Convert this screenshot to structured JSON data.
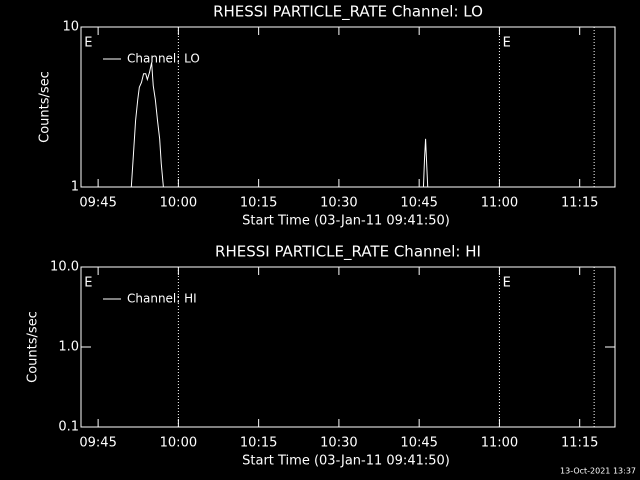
{
  "chart_data": [
    {
      "type": "line",
      "title": "RHESSI PARTICLE_RATE Channel: LO",
      "xlabel": "Start Time (03-Jan-11 09:41:50)",
      "ylabel": "Counts/sec",
      "xlim": [
        581.8,
        681.6
      ],
      "xticks": [
        {
          "value": 585,
          "label": "09:45"
        },
        {
          "value": 600,
          "label": "10:00"
        },
        {
          "value": 615,
          "label": "10:15"
        },
        {
          "value": 630,
          "label": "10:30"
        },
        {
          "value": 645,
          "label": "10:45"
        },
        {
          "value": 660,
          "label": "11:00"
        },
        {
          "value": 675,
          "label": "11:15"
        }
      ],
      "ylim": [
        1,
        10
      ],
      "yticks": [
        1,
        10
      ],
      "log_y": true,
      "markers": [
        600,
        660,
        677.7
      ],
      "annotations": [
        {
          "text": "E",
          "x": 582.4
        },
        {
          "text": "E",
          "x": 660.6
        }
      ],
      "series": [
        {
          "name": "Channel: LO",
          "color": "#ffffff",
          "x": [
            591.2,
            591.6,
            592.0,
            592.4,
            592.7,
            593.1,
            593.5,
            593.9,
            594.2,
            594.6,
            595.0,
            595.3,
            595.7,
            596.1,
            596.5,
            596.8,
            597.2,
            null,
            645.8,
            646.0,
            646.2,
            646.4,
            646.6
          ],
          "values": [
            1,
            1.6,
            2.6,
            3.5,
            4.2,
            4.5,
            5.1,
            5.1,
            4.7,
            5.2,
            6.0,
            4.3,
            3.5,
            2.6,
            2.0,
            1.4,
            1.0,
            null,
            1,
            1.5,
            2.0,
            1.4,
            1
          ]
        }
      ]
    },
    {
      "type": "line",
      "title": "RHESSI PARTICLE_RATE Channel: HI",
      "xlabel": "Start Time (03-Jan-11 09:41:50)",
      "ylabel": "Counts/sec",
      "xlim": [
        581.8,
        681.6
      ],
      "xticks": [
        {
          "value": 585,
          "label": "09:45"
        },
        {
          "value": 600,
          "label": "10:00"
        },
        {
          "value": 615,
          "label": "10:15"
        },
        {
          "value": 630,
          "label": "10:30"
        },
        {
          "value": 645,
          "label": "10:45"
        },
        {
          "value": 660,
          "label": "11:00"
        },
        {
          "value": 675,
          "label": "11:15"
        }
      ],
      "ylim": [
        0.1,
        10
      ],
      "yticks": [
        {
          "value": 0.1,
          "label": "0.1"
        },
        {
          "value": 1,
          "label": "1.0"
        },
        {
          "value": 10,
          "label": "10.0"
        }
      ],
      "log_y": true,
      "markers": [
        600,
        660,
        677.7
      ],
      "annotations": [
        {
          "text": "E",
          "x": 582.4
        },
        {
          "text": "E",
          "x": 660.6
        }
      ],
      "series": [
        {
          "name": "Channel: HI",
          "color": "#ffffff",
          "x": [],
          "values": []
        }
      ]
    }
  ],
  "footer": "13-Oct-2021 13:37"
}
